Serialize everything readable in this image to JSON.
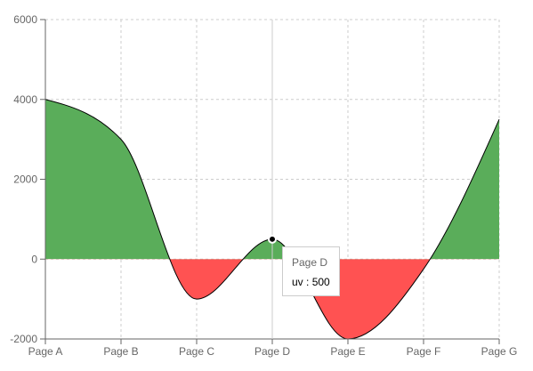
{
  "chart_data": {
    "type": "area",
    "categories": [
      "Page A",
      "Page B",
      "Page C",
      "Page D",
      "Page E",
      "Page F",
      "Page G"
    ],
    "series": [
      {
        "key": "uv",
        "values": [
          4000,
          3000,
          -1000,
          500,
          -2000,
          -250,
          3500
        ]
      }
    ],
    "ylim": [
      -2000,
      6000
    ],
    "yticks": [
      -2000,
      0,
      2000,
      4000,
      6000
    ],
    "grid": true,
    "colors": {
      "positive": "#5aad5a",
      "negative": "#ff5252",
      "stroke": "#000000",
      "grid": "#cccccc",
      "axis": "#666666"
    }
  },
  "tooltip": {
    "label": "Page D",
    "item_name": "uv",
    "separator": " : ",
    "item_value": "500"
  }
}
